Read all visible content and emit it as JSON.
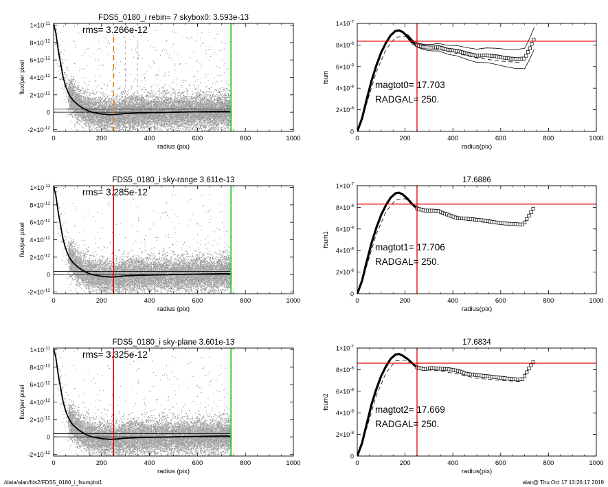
{
  "footer": {
    "path": "/data/alan/fds2/FDS5_0180_i_fsumplot1",
    "stamp": "alan@  Thu Oct 17 13:26:17 2019"
  },
  "colors": {
    "background": "#ffffff",
    "scatter_dark": "#000000",
    "scatter_grey": "#9a9a9a",
    "profile": "#000000",
    "radgal_line": "#e00000",
    "green_line": "#22cc22",
    "orange_dash": "#e8821e",
    "ref_line": "#e00000"
  },
  "chart_data": [
    {
      "id": "flux1",
      "type": "scatter",
      "title": "FDS5_0180_i rebin= 7    skybox0:  3.593e-13",
      "annotation": "rms= 3.266e-12",
      "xlabel": "radius (pix)",
      "ylabel": "flux/per pixel",
      "xlim": [
        0,
        1000
      ],
      "ylim": [
        -2.2e-12,
        1.02e-11
      ],
      "xticks": [
        0,
        200,
        400,
        600,
        800,
        1000
      ],
      "xtick_labels": [
        "0",
        "200",
        "400",
        "600",
        "800",
        "1000"
      ],
      "yticks": [
        -2e-12,
        0,
        2e-12,
        4e-12,
        6e-12,
        8e-12,
        1e-11
      ],
      "ytick_labels": [
        [
          "-2×10",
          "-12"
        ],
        [
          "0",
          ""
        ],
        [
          "2×10",
          "-12"
        ],
        [
          "4×10",
          "-12"
        ],
        [
          "6×10",
          "-12"
        ],
        [
          "8×10",
          "-12"
        ],
        [
          "1×10",
          "-11"
        ]
      ],
      "sky_level": 3.593e-13,
      "radgal": 250,
      "radgal_style": "orange-dashed",
      "extra_dashes": [
        300,
        350
      ],
      "green_x": 740,
      "data_extent": 740,
      "profile": [
        [
          0,
          1.02e-11
        ],
        [
          10,
          9e-12
        ],
        [
          20,
          7e-12
        ],
        [
          30,
          5.5e-12
        ],
        [
          40,
          4e-12
        ],
        [
          50,
          3e-12
        ],
        [
          60,
          2.3e-12
        ],
        [
          70,
          1.8e-12
        ],
        [
          80,
          1.4e-12
        ],
        [
          100,
          9e-13
        ],
        [
          120,
          5e-13
        ],
        [
          140,
          2e-13
        ],
        [
          160,
          0
        ],
        [
          180,
          -1e-13
        ],
        [
          200,
          -2e-13
        ],
        [
          220,
          -2.5e-13
        ],
        [
          240,
          -3e-13
        ],
        [
          260,
          -2.5e-13
        ],
        [
          300,
          -1.5e-13
        ],
        [
          350,
          -1e-13
        ],
        [
          400,
          -5e-14
        ],
        [
          500,
          0
        ],
        [
          600,
          5e-14
        ],
        [
          700,
          1e-13
        ],
        [
          740,
          1e-13
        ]
      ]
    },
    {
      "id": "fsum0",
      "type": "line",
      "title": "",
      "annotations": [
        "magtot0=  17.703",
        "RADGAL=    250."
      ],
      "xlabel": "radius(pix)",
      "ylabel": "fsum",
      "xlim": [
        0,
        1000
      ],
      "ylim": [
        0,
        1e-07
      ],
      "xticks": [
        0,
        200,
        400,
        600,
        800,
        1000
      ],
      "xtick_labels": [
        "0",
        "200",
        "400",
        "600",
        "800",
        "1000"
      ],
      "yticks": [
        0,
        2e-08,
        4e-08,
        6e-08,
        8e-08,
        1e-07
      ],
      "ytick_labels": [
        [
          "0",
          ""
        ],
        [
          "2×10",
          "-8"
        ],
        [
          "4×10",
          "-8"
        ],
        [
          "6×10",
          "-8"
        ],
        [
          "8×10",
          "-8"
        ],
        [
          "1×10",
          "-7"
        ]
      ],
      "hline": 8.35e-08,
      "radgal": 250,
      "curve": [
        [
          0,
          0
        ],
        [
          20,
          1.2e-08
        ],
        [
          40,
          3e-08
        ],
        [
          60,
          4.7e-08
        ],
        [
          80,
          6.1e-08
        ],
        [
          100,
          7.3e-08
        ],
        [
          120,
          8.2e-08
        ],
        [
          140,
          8.9e-08
        ],
        [
          160,
          9.3e-08
        ],
        [
          175,
          9.35e-08
        ],
        [
          190,
          9.2e-08
        ],
        [
          210,
          8.8e-08
        ],
        [
          230,
          8.3e-08
        ],
        [
          250,
          8e-08
        ],
        [
          280,
          7.8e-08
        ],
        [
          310,
          7.75e-08
        ],
        [
          340,
          7.8e-08
        ],
        [
          380,
          7.55e-08
        ],
        [
          420,
          7.45e-08
        ],
        [
          460,
          7.2e-08
        ],
        [
          500,
          7e-08
        ],
        [
          540,
          7.05e-08
        ],
        [
          580,
          6.95e-08
        ],
        [
          620,
          6.8e-08
        ],
        [
          660,
          6.7e-08
        ],
        [
          700,
          6.75e-08
        ],
        [
          720,
          7.6e-08
        ],
        [
          740,
          8.6e-08
        ]
      ],
      "envelope": 9e-10,
      "dashed": [
        [
          0,
          0
        ],
        [
          40,
          2.6e-08
        ],
        [
          80,
          5.5e-08
        ],
        [
          120,
          7.6e-08
        ],
        [
          160,
          8.7e-08
        ],
        [
          200,
          8.8e-08
        ],
        [
          240,
          8.2e-08
        ],
        [
          280,
          7.7e-08
        ],
        [
          340,
          7.6e-08
        ],
        [
          420,
          7.2e-08
        ],
        [
          500,
          6.8e-08
        ],
        [
          600,
          6.5e-08
        ],
        [
          680,
          6.4e-08
        ]
      ],
      "markers_from": 250,
      "markers_to": 740,
      "markers_step": 8,
      "marker_size": 2.2,
      "envelope_fan": true
    },
    {
      "id": "flux2",
      "type": "scatter",
      "title": "FDS5_0180_i sky-range  3.611e-13",
      "annotation": "rms= 3.285e-12",
      "xlabel": "radius (pix)",
      "ylabel": "flux/per pixel",
      "xlim": [
        0,
        1000
      ],
      "ylim": [
        -2.2e-12,
        1.02e-11
      ],
      "xticks": [
        0,
        200,
        400,
        600,
        800,
        1000
      ],
      "xtick_labels": [
        "0",
        "200",
        "400",
        "600",
        "800",
        "1000"
      ],
      "yticks": [
        -2e-12,
        0,
        2e-12,
        4e-12,
        6e-12,
        8e-12,
        1e-11
      ],
      "ytick_labels": [
        [
          "-2×10",
          "-12"
        ],
        [
          "0",
          ""
        ],
        [
          "2×10",
          "-12"
        ],
        [
          "4×10",
          "-12"
        ],
        [
          "6×10",
          "-12"
        ],
        [
          "8×10",
          "-12"
        ],
        [
          "1×10",
          "-11"
        ]
      ],
      "sky_level": 3.611e-13,
      "radgal": 250,
      "radgal_style": "red-solid",
      "green_x": 740,
      "data_extent": 740,
      "profile": [
        [
          0,
          1.02e-11
        ],
        [
          10,
          9e-12
        ],
        [
          20,
          7e-12
        ],
        [
          30,
          5.5e-12
        ],
        [
          40,
          4e-12
        ],
        [
          50,
          3e-12
        ],
        [
          60,
          2.3e-12
        ],
        [
          70,
          1.8e-12
        ],
        [
          80,
          1.4e-12
        ],
        [
          100,
          9e-13
        ],
        [
          120,
          5e-13
        ],
        [
          140,
          2e-13
        ],
        [
          160,
          0
        ],
        [
          180,
          -1e-13
        ],
        [
          200,
          -2e-13
        ],
        [
          220,
          -2.5e-13
        ],
        [
          240,
          -3e-13
        ],
        [
          260,
          -2.5e-13
        ],
        [
          300,
          -1.5e-13
        ],
        [
          350,
          -1e-13
        ],
        [
          400,
          -5e-14
        ],
        [
          500,
          0
        ],
        [
          600,
          5e-14
        ],
        [
          700,
          1e-13
        ],
        [
          740,
          1e-13
        ]
      ]
    },
    {
      "id": "fsum1",
      "type": "line",
      "title": "17.6886",
      "annotations": [
        "magtot1=  17.706",
        "RADGAL=    250."
      ],
      "xlabel": "radius(pix)",
      "ylabel": "fsum1",
      "xlim": [
        0,
        1000
      ],
      "ylim": [
        0,
        1e-07
      ],
      "xticks": [
        0,
        200,
        400,
        600,
        800,
        1000
      ],
      "xtick_labels": [
        "0",
        "200",
        "400",
        "600",
        "800",
        "1000"
      ],
      "yticks": [
        0,
        2e-08,
        4e-08,
        6e-08,
        8e-08,
        1e-07
      ],
      "ytick_labels": [
        [
          "0",
          ""
        ],
        [
          "2×10",
          "-8"
        ],
        [
          "4×10",
          "-8"
        ],
        [
          "6×10",
          "-8"
        ],
        [
          "8×10",
          "-8"
        ],
        [
          "1×10",
          "-7"
        ]
      ],
      "hline": 8.3e-08,
      "radgal": 250,
      "curve": [
        [
          0,
          0
        ],
        [
          20,
          1.2e-08
        ],
        [
          40,
          3e-08
        ],
        [
          60,
          4.7e-08
        ],
        [
          80,
          6.1e-08
        ],
        [
          100,
          7.3e-08
        ],
        [
          120,
          8.2e-08
        ],
        [
          140,
          8.9e-08
        ],
        [
          160,
          9.3e-08
        ],
        [
          175,
          9.35e-08
        ],
        [
          190,
          9.2e-08
        ],
        [
          210,
          8.8e-08
        ],
        [
          230,
          8.3e-08
        ],
        [
          250,
          7.9e-08
        ],
        [
          280,
          7.7e-08
        ],
        [
          310,
          7.7e-08
        ],
        [
          340,
          7.65e-08
        ],
        [
          380,
          7.3e-08
        ],
        [
          420,
          7e-08
        ],
        [
          460,
          6.95e-08
        ],
        [
          500,
          6.85e-08
        ],
        [
          540,
          6.75e-08
        ],
        [
          580,
          6.6e-08
        ],
        [
          620,
          6.5e-08
        ],
        [
          660,
          6.45e-08
        ],
        [
          690,
          6.4e-08
        ],
        [
          700,
          6.6e-08
        ],
        [
          720,
          7.3e-08
        ],
        [
          740,
          8e-08
        ]
      ],
      "envelope": 3e-10,
      "dashed": [
        [
          0,
          0
        ],
        [
          40,
          2.6e-08
        ],
        [
          80,
          5.5e-08
        ],
        [
          120,
          7.6e-08
        ],
        [
          160,
          8.7e-08
        ],
        [
          200,
          8.8e-08
        ],
        [
          240,
          8.2e-08
        ],
        [
          280,
          7.65e-08
        ],
        [
          340,
          7.5e-08
        ],
        [
          420,
          6.9e-08
        ],
        [
          500,
          6.7e-08
        ],
        [
          600,
          6.4e-08
        ],
        [
          680,
          6.3e-08
        ]
      ],
      "markers_from": 250,
      "markers_to": 740,
      "markers_step": 9,
      "marker_size": 2.2,
      "envelope_fan": false
    },
    {
      "id": "flux3",
      "type": "scatter",
      "title": "FDS5_0180_i sky-plane  3.601e-13",
      "annotation": "rms= 3.325e-12",
      "xlabel": "radius (pix)",
      "ylabel": "flux/per pixel",
      "xlim": [
        0,
        1000
      ],
      "ylim": [
        -2.2e-12,
        1.02e-11
      ],
      "xticks": [
        0,
        200,
        400,
        600,
        800,
        1000
      ],
      "xtick_labels": [
        "0",
        "200",
        "400",
        "600",
        "800",
        "1000"
      ],
      "yticks": [
        -2e-12,
        0,
        2e-12,
        4e-12,
        6e-12,
        8e-12,
        1e-11
      ],
      "ytick_labels": [
        [
          "-2×10",
          "-12"
        ],
        [
          "0",
          ""
        ],
        [
          "2×10",
          "-12"
        ],
        [
          "4×10",
          "-12"
        ],
        [
          "6×10",
          "-12"
        ],
        [
          "8×10",
          "-12"
        ],
        [
          "1×10",
          "-11"
        ]
      ],
      "sky_level": 3.601e-13,
      "radgal": 250,
      "radgal_style": "red-solid",
      "green_x": 740,
      "data_extent": 740,
      "profile": [
        [
          0,
          1.02e-11
        ],
        [
          10,
          9e-12
        ],
        [
          20,
          7e-12
        ],
        [
          30,
          5.5e-12
        ],
        [
          40,
          4e-12
        ],
        [
          50,
          3e-12
        ],
        [
          60,
          2.3e-12
        ],
        [
          70,
          1.8e-12
        ],
        [
          80,
          1.4e-12
        ],
        [
          100,
          9e-13
        ],
        [
          120,
          5e-13
        ],
        [
          140,
          2e-13
        ],
        [
          160,
          0
        ],
        [
          180,
          -1e-13
        ],
        [
          200,
          -2e-13
        ],
        [
          220,
          -2.5e-13
        ],
        [
          240,
          -3e-13
        ],
        [
          260,
          -2.5e-13
        ],
        [
          300,
          -1.5e-13
        ],
        [
          350,
          -1e-13
        ],
        [
          400,
          -5e-14
        ],
        [
          500,
          0
        ],
        [
          600,
          5e-14
        ],
        [
          700,
          1e-13
        ],
        [
          740,
          1e-13
        ]
      ]
    },
    {
      "id": "fsum2",
      "type": "line",
      "title": "17.6834",
      "annotations": [
        "magtot2=  17.669",
        "RADGAL=    250."
      ],
      "xlabel": "radius(pix)",
      "ylabel": "fsum2",
      "xlim": [
        0,
        1000
      ],
      "ylim": [
        0,
        1e-07
      ],
      "xticks": [
        0,
        200,
        400,
        600,
        800,
        1000
      ],
      "xtick_labels": [
        "0",
        "200",
        "400",
        "600",
        "800",
        "1000"
      ],
      "yticks": [
        0,
        2e-08,
        4e-08,
        6e-08,
        8e-08,
        1e-07
      ],
      "ytick_labels": [
        [
          "0",
          ""
        ],
        [
          "2×10",
          "-8"
        ],
        [
          "4×10",
          "-8"
        ],
        [
          "6×10",
          "-8"
        ],
        [
          "8×10",
          "-8"
        ],
        [
          "1×10",
          "-7"
        ]
      ],
      "hline": 8.6e-08,
      "radgal": 250,
      "curve": [
        [
          0,
          0
        ],
        [
          20,
          1.2e-08
        ],
        [
          40,
          3e-08
        ],
        [
          60,
          4.8e-08
        ],
        [
          80,
          6.2e-08
        ],
        [
          100,
          7.4e-08
        ],
        [
          120,
          8.3e-08
        ],
        [
          140,
          9e-08
        ],
        [
          160,
          9.4e-08
        ],
        [
          175,
          9.45e-08
        ],
        [
          190,
          9.3e-08
        ],
        [
          210,
          9e-08
        ],
        [
          230,
          8.6e-08
        ],
        [
          250,
          8.2e-08
        ],
        [
          280,
          8.05e-08
        ],
        [
          310,
          8.15e-08
        ],
        [
          340,
          8.1e-08
        ],
        [
          380,
          8.05e-08
        ],
        [
          420,
          7.9e-08
        ],
        [
          460,
          7.6e-08
        ],
        [
          500,
          7.5e-08
        ],
        [
          540,
          7.4e-08
        ],
        [
          580,
          7.3e-08
        ],
        [
          620,
          7.2e-08
        ],
        [
          660,
          7.1e-08
        ],
        [
          690,
          7.1e-08
        ],
        [
          700,
          7.4e-08
        ],
        [
          720,
          8.2e-08
        ],
        [
          740,
          8.8e-08
        ]
      ],
      "envelope": 3e-10,
      "dashed": [
        [
          0,
          0
        ],
        [
          40,
          2.6e-08
        ],
        [
          80,
          5.6e-08
        ],
        [
          120,
          7.7e-08
        ],
        [
          160,
          8.8e-08
        ],
        [
          200,
          8.9e-08
        ],
        [
          240,
          8.4e-08
        ],
        [
          280,
          8e-08
        ],
        [
          340,
          7.9e-08
        ],
        [
          420,
          7.6e-08
        ],
        [
          500,
          7.2e-08
        ],
        [
          600,
          7e-08
        ],
        [
          680,
          6.9e-08
        ]
      ],
      "markers_from": 250,
      "markers_to": 740,
      "markers_step": 9,
      "marker_size": 2.2,
      "envelope_fan": false
    }
  ]
}
